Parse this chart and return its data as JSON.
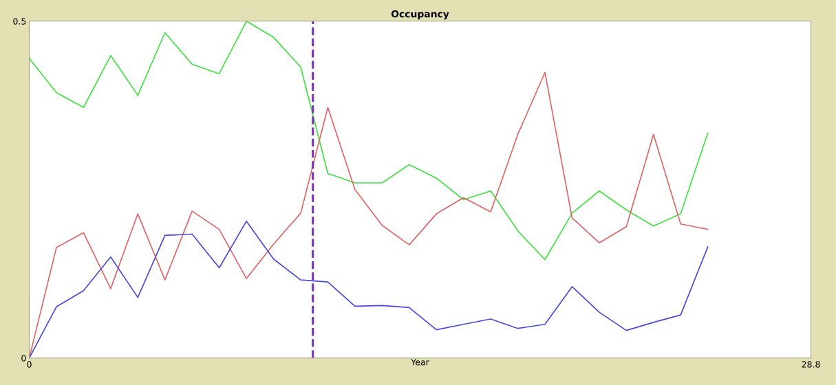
{
  "chart_data": {
    "type": "line",
    "title": "Occupancy",
    "xlabel": "Year",
    "x": [
      0,
      1,
      2,
      3,
      4,
      5,
      6,
      7,
      8,
      9,
      10,
      11,
      12,
      13,
      14,
      15,
      16,
      17,
      18,
      19,
      20,
      21,
      22,
      23,
      24,
      25
    ],
    "series": [
      {
        "color": "#3fe03f",
        "values": [
          0.445,
          0.394,
          0.372,
          0.449,
          0.39,
          0.483,
          0.436,
          0.422,
          0.5,
          0.476,
          0.432,
          0.274,
          0.26,
          0.26,
          0.287,
          0.267,
          0.235,
          0.248,
          0.189,
          0.146,
          0.215,
          0.248,
          0.22,
          0.196,
          0.214,
          0.334
        ]
      },
      {
        "color": "#e06464",
        "values": [
          0,
          0.164,
          0.186,
          0.103,
          0.214,
          0.116,
          0.218,
          0.191,
          0.118,
          0.169,
          0.215,
          0.372,
          0.25,
          0.197,
          0.168,
          0.214,
          0.238,
          0.217,
          0.332,
          0.424,
          0.208,
          0.171,
          0.195,
          0.332,
          0.199,
          0.191
        ]
      },
      {
        "color": "#4848e0",
        "values": [
          0,
          0.076,
          0.1,
          0.15,
          0.09,
          0.182,
          0.184,
          0.134,
          0.203,
          0.147,
          0.116,
          0.113,
          0.077,
          0.078,
          0.075,
          0.042,
          0.05,
          0.058,
          0.044,
          0.05,
          0.106,
          0.068,
          0.041,
          0.053,
          0.064,
          0.165
        ]
      }
    ],
    "xlim": [
      0,
      28.8
    ],
    "xticks": [
      0,
      28.8
    ],
    "ylim": [
      0,
      0.5
    ],
    "yticks": [
      0,
      0.5
    ],
    "ref_lines": [
      {
        "axis": "x",
        "value": 10.45,
        "color": "#7b2fb5",
        "line_style": "dashed"
      }
    ],
    "grid": false,
    "legend": false
  }
}
